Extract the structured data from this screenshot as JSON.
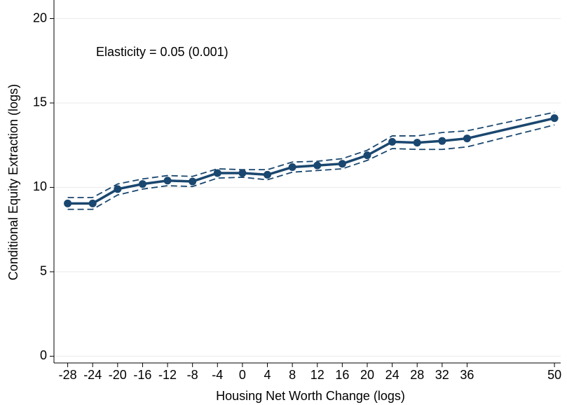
{
  "chart_data": {
    "type": "line",
    "x_label": "Housing Net Worth Change (logs)",
    "y_label": "Conditional Equity Extraction (logs)",
    "annotation": "Elasticity = 0.05 (0.001)",
    "x": [
      -28,
      -24,
      -20,
      -16,
      -12,
      -8,
      -4,
      0,
      4,
      8,
      12,
      16,
      20,
      24,
      28,
      32,
      36,
      50
    ],
    "series": [
      {
        "color": "#1a476f",
        "style": "solid",
        "markers": true,
        "values": [
          9.05,
          9.05,
          9.9,
          10.2,
          10.4,
          10.35,
          10.85,
          10.85,
          10.75,
          11.2,
          11.3,
          11.4,
          11.9,
          12.7,
          12.65,
          12.75,
          12.9,
          14.1
        ]
      },
      {
        "color": "#1a476f",
        "style": "dashed",
        "markers": false,
        "values": [
          9.4,
          9.4,
          10.2,
          10.5,
          10.7,
          10.65,
          11.1,
          11.05,
          11.05,
          11.5,
          11.55,
          11.7,
          12.2,
          13.05,
          13.05,
          13.25,
          13.35,
          14.45
        ]
      },
      {
        "color": "#1a476f",
        "style": "dashed",
        "markers": false,
        "values": [
          8.7,
          8.7,
          9.55,
          9.9,
          10.1,
          10.05,
          10.55,
          10.6,
          10.45,
          10.9,
          11.0,
          11.1,
          11.6,
          12.3,
          12.25,
          12.25,
          12.4,
          13.7
        ]
      }
    ],
    "xlim": [
      -30.2,
      51
    ],
    "xticks": [
      -28,
      -24,
      -20,
      -16,
      -12,
      -8,
      -4,
      0,
      4,
      8,
      12,
      16,
      20,
      24,
      28,
      32,
      36,
      50
    ],
    "ylim": [
      -0.4,
      21.1
    ],
    "yticks": [
      0,
      5,
      10,
      15,
      20
    ],
    "grid": true
  }
}
